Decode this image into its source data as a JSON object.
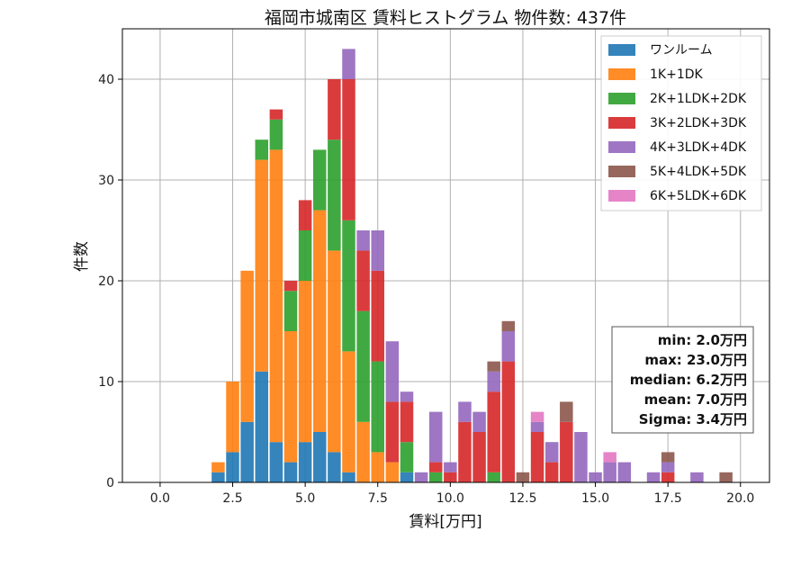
{
  "chart_data": {
    "type": "bar",
    "stacked": true,
    "title": "福岡市城南区 賃料ヒストグラム 物件数: 437件",
    "xlabel": "賃料[万円]",
    "ylabel": "件数",
    "xlim": [
      -1.3,
      21.0
    ],
    "ylim": [
      0,
      45
    ],
    "xticks": [
      "0.0",
      "2.5",
      "5.0",
      "7.5",
      "10.0",
      "12.5",
      "15.0",
      "17.5",
      "20.0"
    ],
    "yticks": [
      "0",
      "10",
      "20",
      "30",
      "40"
    ],
    "grid": true,
    "legend_position": "top-right",
    "bin_width": 0.5,
    "x": [
      2.0,
      2.5,
      3.0,
      3.5,
      4.0,
      4.5,
      5.0,
      5.5,
      6.0,
      6.5,
      7.0,
      7.5,
      8.0,
      8.5,
      9.0,
      9.5,
      10.0,
      10.5,
      11.0,
      11.5,
      12.0,
      12.5,
      13.0,
      13.5,
      14.0,
      14.5,
      15.0,
      15.5,
      16.0,
      16.5,
      17.0,
      17.5,
      18.0,
      18.5,
      19.0,
      19.5
    ],
    "series": [
      {
        "name": "ワンルーム",
        "color": "#1f77b4",
        "values": [
          1,
          3,
          6,
          11,
          4,
          2,
          4,
          5,
          3,
          1,
          0,
          0,
          0,
          1,
          0,
          0,
          0,
          0,
          0,
          0,
          0,
          0,
          0,
          0,
          0,
          0,
          0,
          0,
          0,
          0,
          0,
          0,
          0,
          0,
          0,
          0
        ]
      },
      {
        "name": "1K+1DK",
        "color": "#ff7f0e",
        "values": [
          1,
          7,
          15,
          21,
          29,
          13,
          16,
          22,
          20,
          12,
          6,
          3,
          2,
          0,
          0,
          0,
          0,
          0,
          0,
          0,
          0,
          0,
          0,
          0,
          0,
          0,
          0,
          0,
          0,
          0,
          0,
          0,
          0,
          0,
          0,
          0
        ]
      },
      {
        "name": "2K+1LDK+2DK",
        "color": "#2ca02c",
        "values": [
          0,
          0,
          0,
          2,
          3,
          4,
          5,
          6,
          11,
          13,
          11,
          9,
          0,
          3,
          0,
          1,
          0,
          0,
          0,
          1,
          0,
          0,
          0,
          0,
          0,
          0,
          0,
          0,
          0,
          0,
          0,
          0,
          0,
          0,
          0,
          0
        ]
      },
      {
        "name": "3K+2LDK+3DK",
        "color": "#d62728",
        "values": [
          0,
          0,
          0,
          0,
          1,
          1,
          3,
          0,
          6,
          14,
          6,
          9,
          6,
          4,
          0,
          1,
          1,
          6,
          5,
          8,
          12,
          0,
          5,
          2,
          6,
          0,
          0,
          0,
          0,
          0,
          0,
          1,
          0,
          0,
          0,
          0
        ]
      },
      {
        "name": "4K+3LDK+4DK",
        "color": "#9467bd",
        "values": [
          0,
          0,
          0,
          0,
          0,
          0,
          0,
          0,
          0,
          3,
          2,
          4,
          6,
          1,
          1,
          5,
          1,
          2,
          2,
          2,
          3,
          0,
          1,
          2,
          0,
          5,
          1,
          2,
          2,
          0,
          1,
          1,
          0,
          1,
          0,
          0
        ]
      },
      {
        "name": "5K+4LDK+5DK",
        "color": "#8c564b",
        "values": [
          0,
          0,
          0,
          0,
          0,
          0,
          0,
          0,
          0,
          0,
          0,
          0,
          0,
          0,
          0,
          0,
          0,
          0,
          0,
          1,
          1,
          1,
          0,
          0,
          2,
          0,
          0,
          0,
          0,
          0,
          0,
          1,
          0,
          0,
          0,
          1
        ]
      },
      {
        "name": "6K+5LDK+6DK",
        "color": "#e377c2",
        "values": [
          0,
          0,
          0,
          0,
          0,
          0,
          0,
          0,
          0,
          0,
          0,
          0,
          0,
          0,
          0,
          0,
          0,
          0,
          0,
          0,
          0,
          0,
          1,
          0,
          0,
          0,
          0,
          1,
          0,
          0,
          0,
          0,
          0,
          0,
          0,
          0
        ]
      }
    ],
    "stats": {
      "min": "min: 2.0万円",
      "max": "max: 23.0万円",
      "median": "median: 6.2万円",
      "mean": "mean: 7.0万円",
      "sigma": "Sigma: 3.4万円"
    }
  }
}
